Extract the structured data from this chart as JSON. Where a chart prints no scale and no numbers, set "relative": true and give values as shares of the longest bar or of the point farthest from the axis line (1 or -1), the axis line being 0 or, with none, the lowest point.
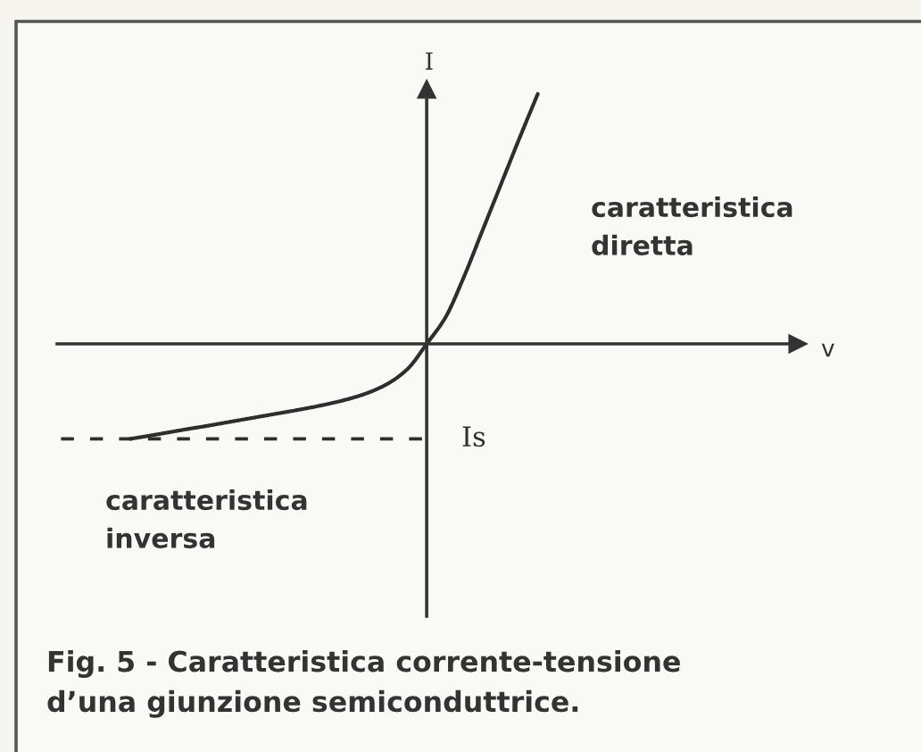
{
  "chart_data": {
    "type": "line",
    "relative": true,
    "ylabel": "I",
    "categories": [
      null,
      null,
      null,
      null,
      null,
      null,
      null,
      null,
      null,
      null,
      null,
      null,
      null,
      null,
      null,
      null,
      null,
      null,
      null,
      null,
      null,
      null,
      null
    ],
    "series": [
      {
        "color": "#2e2e2e",
        "values": [
          -0.38,
          -0.368,
          -0.355,
          -0.342,
          -0.33,
          -0.317,
          -0.304,
          -0.291,
          -0.278,
          -0.265,
          -0.251,
          -0.235,
          -0.216,
          -0.191,
          -0.155,
          -0.098,
          0,
          0.104,
          0.266,
          0.451,
          0.636,
          0.821,
          1.0
        ]
      }
    ],
    "ref_lines": [
      {
        "axis": "y",
        "value": -0.38,
        "label": "Is",
        "line_style": "dashed",
        "color": "#2e2e2e"
      }
    ],
    "annotations": [
      "caratteristica\ndiretta",
      "v",
      "caratteristica\ninversa",
      "Fig. 5 - Caratteristica corrente-tensione\nd’una giunzione semiconduttrice."
    ]
  }
}
